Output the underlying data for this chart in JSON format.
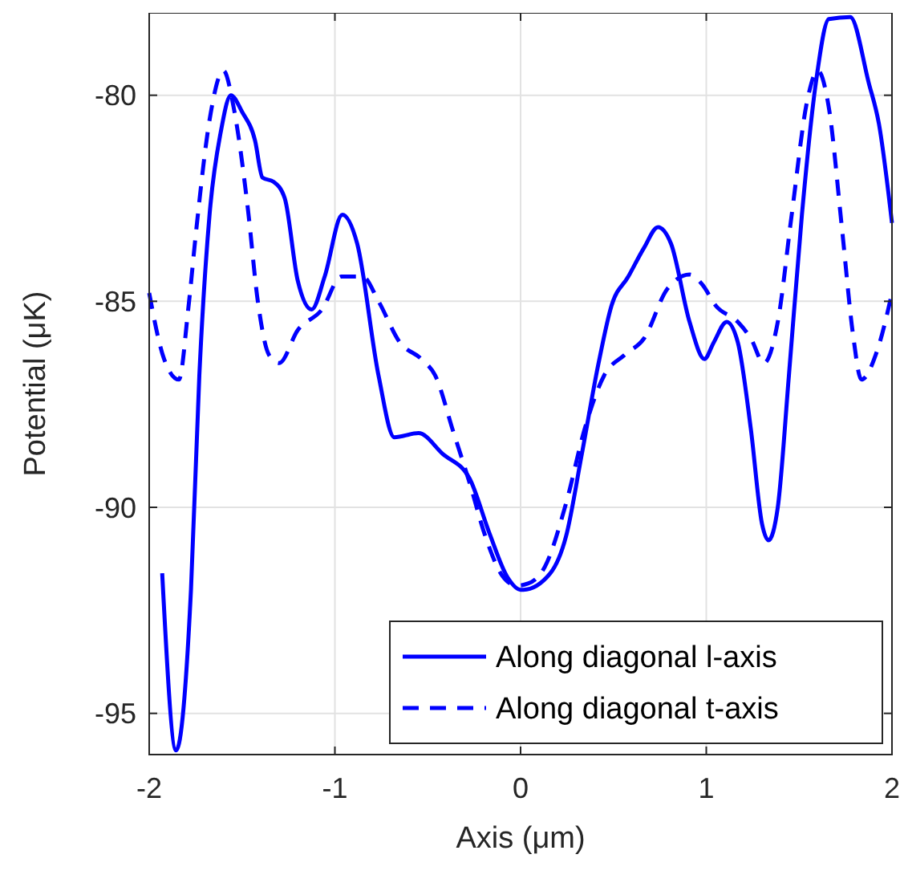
{
  "chart_data": {
    "type": "line",
    "xlabel": "Axis (μm)",
    "ylabel": "Potential (μK)",
    "xlim": [
      -2,
      2
    ],
    "xticks": [
      -2,
      -1,
      0,
      1,
      2
    ],
    "ylim": [
      -96,
      -78
    ],
    "yticks": [
      -95,
      -90,
      -85,
      -80
    ],
    "grid": true,
    "legend": "bottom right",
    "series": [
      {
        "name": "Along diagonal l-axis",
        "color": "#0000ff",
        "line_style": "solid",
        "x": [
          -1.93,
          -1.855,
          -1.775,
          -1.73,
          -1.675,
          -1.615,
          -1.56,
          -1.5,
          -1.43,
          -1.39,
          -1.33,
          -1.27,
          -1.2,
          -1.125,
          -1.055,
          -0.96,
          -0.88,
          -0.765,
          -0.68,
          -0.55,
          -0.42,
          -0.275,
          -0.17,
          -0.07,
          0,
          0.015,
          0.16,
          0.245,
          0.33,
          0.42,
          0.49,
          0.58,
          0.665,
          0.74,
          0.81,
          0.91,
          0.99,
          1.04,
          1.11,
          1.17,
          1.24,
          1.3,
          1.335,
          1.385,
          1.445,
          1.515,
          1.59,
          1.66,
          1.775,
          1.875,
          1.93,
          2.0
        ],
        "values": [
          -91.6,
          -95.9,
          -92.0,
          -86.8,
          -82.9,
          -80.9,
          -80.0,
          -80.4,
          -81.1,
          -82.0,
          -82.1,
          -82.5,
          -84.5,
          -85.2,
          -84.4,
          -82.9,
          -83.6,
          -86.8,
          -88.3,
          -88.2,
          -88.7,
          -89.3,
          -90.6,
          -91.7,
          -92.0,
          -92.0,
          -91.6,
          -90.7,
          -88.7,
          -86.5,
          -85.1,
          -84.4,
          -83.7,
          -83.2,
          -83.6,
          -85.5,
          -86.4,
          -86.0,
          -85.5,
          -86.0,
          -88.1,
          -90.4,
          -90.8,
          -90.0,
          -86.8,
          -82.9,
          -79.7,
          -78.15,
          -78.1,
          -79.7,
          -80.7,
          -83.1
        ]
      },
      {
        "name": "Along diagonal t-axis",
        "color": "#0000ff",
        "line_style": "dashed",
        "x": [
          -2.0,
          -1.92,
          -1.84,
          -1.79,
          -1.745,
          -1.675,
          -1.6,
          -1.545,
          -1.47,
          -1.415,
          -1.355,
          -1.3,
          -1.2,
          -1.07,
          -0.965,
          -0.85,
          -0.765,
          -0.65,
          -0.535,
          -0.46,
          -0.36,
          -0.275,
          -0.19,
          -0.1,
          -0.02,
          0.04,
          0.13,
          0.245,
          0.345,
          0.45,
          0.56,
          0.665,
          0.79,
          0.91,
          0.98,
          1.05,
          1.17,
          1.24,
          1.31,
          1.385,
          1.46,
          1.545,
          1.6,
          1.66,
          1.73,
          1.79,
          1.835,
          1.92,
          2.0
        ],
        "values": [
          -84.8,
          -86.4,
          -86.9,
          -85.2,
          -83.2,
          -80.6,
          -79.4,
          -80.3,
          -82.7,
          -85.0,
          -86.3,
          -86.5,
          -85.7,
          -85.2,
          -84.4,
          -84.4,
          -85.0,
          -86.0,
          -86.4,
          -86.8,
          -88.2,
          -89.4,
          -90.7,
          -91.65,
          -91.9,
          -91.85,
          -91.45,
          -89.9,
          -88.1,
          -86.8,
          -86.3,
          -85.9,
          -84.7,
          -84.35,
          -84.6,
          -85.1,
          -85.5,
          -85.9,
          -86.5,
          -85.5,
          -82.9,
          -80.1,
          -79.4,
          -80.3,
          -83.2,
          -85.8,
          -86.9,
          -86.2,
          -84.8
        ]
      }
    ]
  }
}
